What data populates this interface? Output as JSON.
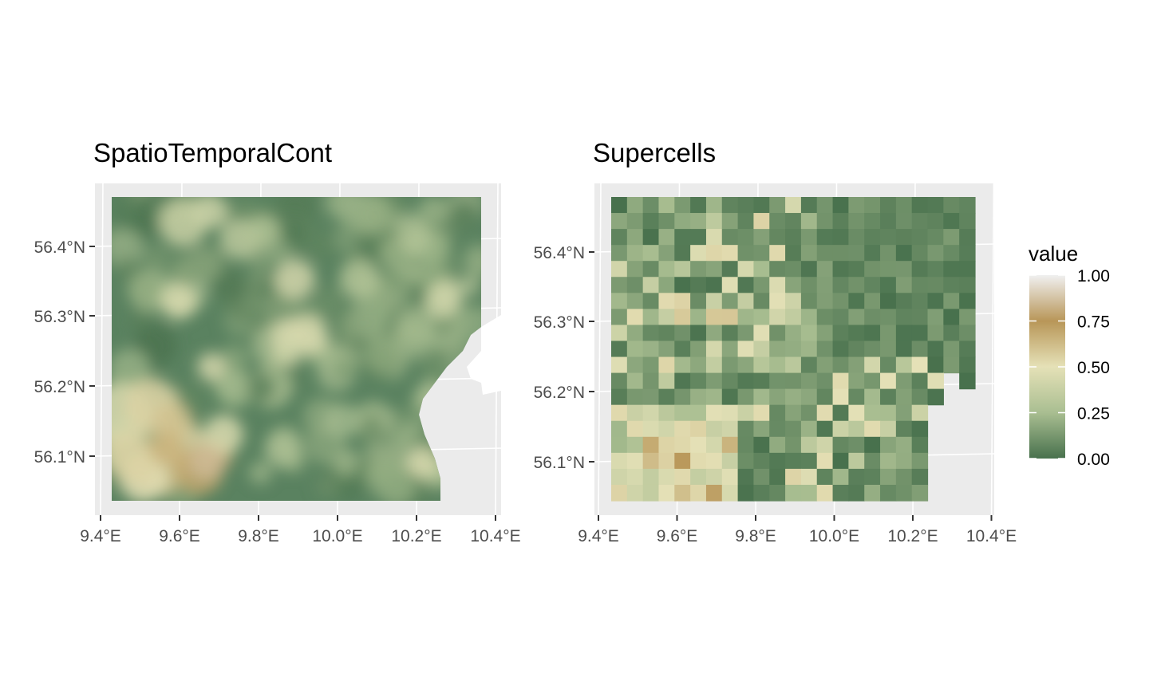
{
  "panels": {
    "left": {
      "title": "SpatioTemporalCont"
    },
    "right": {
      "title": "Supercells"
    }
  },
  "axes": {
    "lat_ticks": [
      "56.4°N",
      "56.3°N",
      "56.2°N",
      "56.1°N"
    ],
    "lon_ticks": [
      "9.4°E",
      "9.6°E",
      "9.8°E",
      "10.0°E",
      "10.2°E",
      "10.4°E"
    ]
  },
  "legend": {
    "title": "value",
    "labels": [
      "1.00",
      "0.75",
      "0.50",
      "0.25",
      "0.00"
    ]
  },
  "palette": {
    "low": "#48714d",
    "mid_low": "#a9be91",
    "mid": "#e5e1b7",
    "mid_high": "#b89658",
    "high": "#f0f0f0",
    "panel_bg": "#ebebeb",
    "grid": "#ffffff"
  },
  "chart_data": [
    {
      "type": "heatmap",
      "title": "SpatioTemporalCont",
      "xlabel": "",
      "ylabel": "",
      "xlim": [
        9.4,
        10.4
      ],
      "ylim": [
        56.03,
        56.48
      ],
      "raster_extent": {
        "lon": [
          9.43,
          10.37
        ],
        "lat": [
          56.035,
          56.47
        ]
      },
      "value_range": [
        0,
        1
      ],
      "description_values": "continuous field, mostly low values (0.0–0.3) with light patches (0.4–0.5) and a high-value area (0.6–0.9) in the south-west corner",
      "hotspots": [
        {
          "lon": 9.57,
          "lat": 56.11,
          "value": 0.65
        },
        {
          "lon": 9.67,
          "lat": 56.09,
          "value": 0.85
        },
        {
          "lon": 9.5,
          "lat": 56.08,
          "value": 0.55
        },
        {
          "lon": 9.6,
          "lat": 56.32,
          "value": 0.45
        },
        {
          "lon": 9.88,
          "lat": 56.27,
          "value": 0.45
        },
        {
          "lon": 9.68,
          "lat": 56.45,
          "value": 0.4
        },
        {
          "lon": 10.27,
          "lat": 56.32,
          "value": 0.4
        }
      ]
    },
    {
      "type": "heatmap",
      "title": "Supercells",
      "xlabel": "",
      "ylabel": "",
      "xlim": [
        9.4,
        10.4
      ],
      "ylim": [
        56.03,
        56.48
      ],
      "grid_size": {
        "cols": 23,
        "rows": 19
      },
      "raster_extent": {
        "lon": [
          9.43,
          10.35
        ],
        "lat": [
          56.04,
          56.47
        ]
      },
      "value_range": [
        0,
        1
      ],
      "description_values": "blocky supercell averages of the continuous field; values mostly 0.0–0.3, 0.4–0.6 in the west and south-west, up to ~0.75 near 9.55–9.7°E, 56.07–56.12°N"
    }
  ]
}
